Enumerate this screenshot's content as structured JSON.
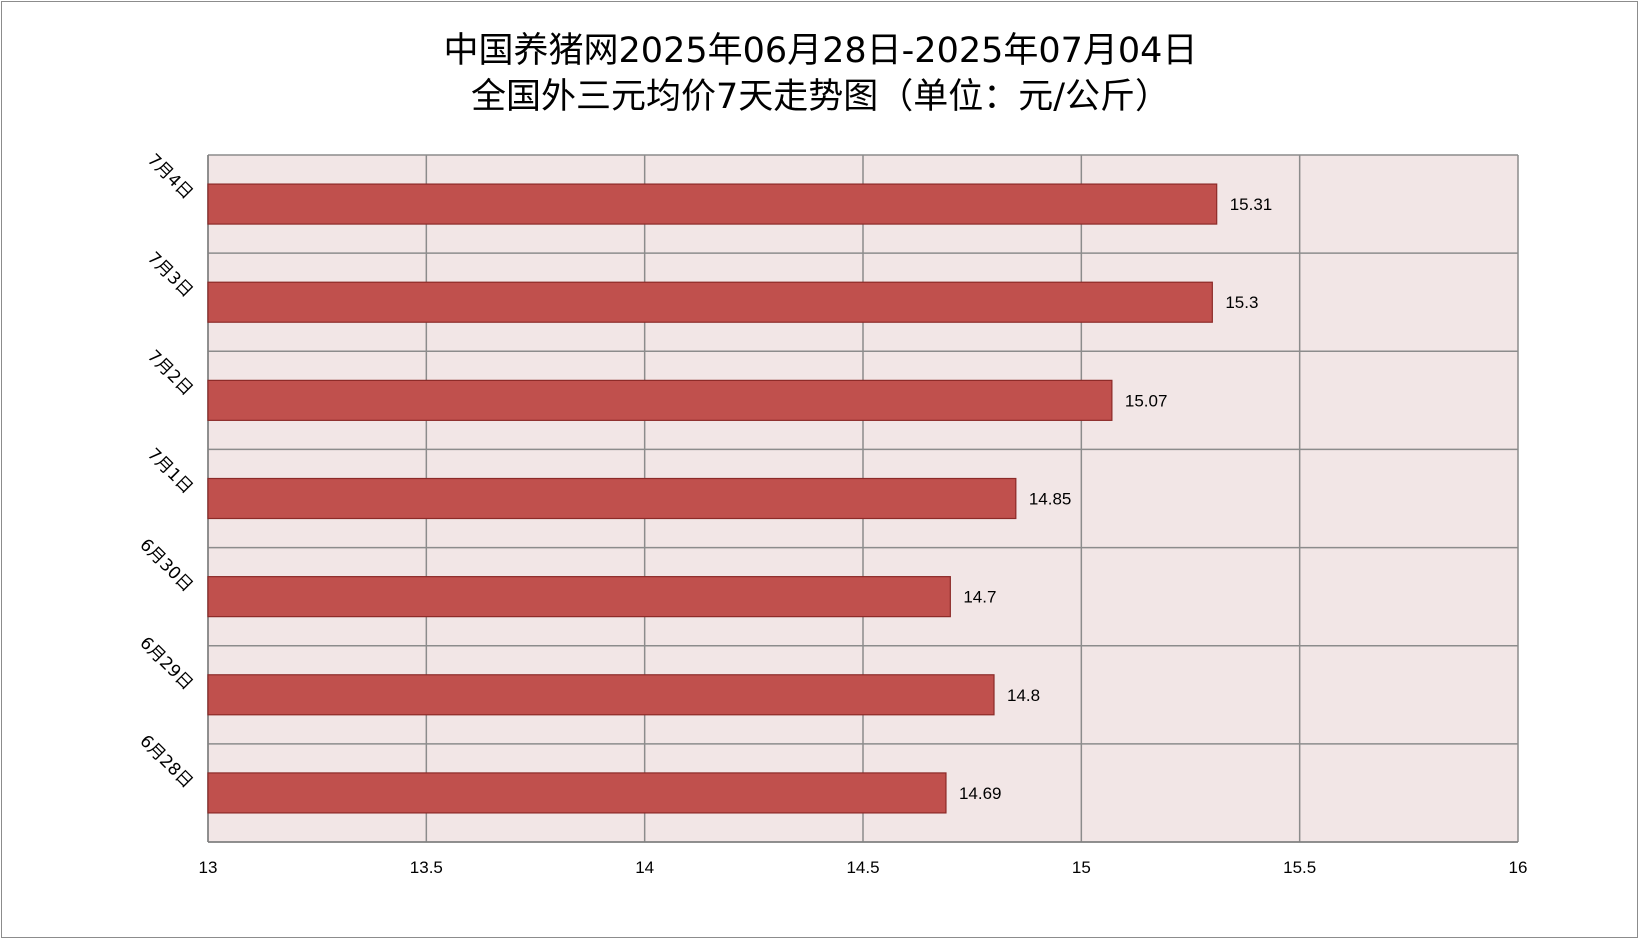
{
  "chart_data": {
    "type": "bar",
    "orientation": "horizontal",
    "title_lines": [
      "中国养猪网2025年06月28日-2025年07月04日",
      "全国外三元均价7天走势图（单位：元/公斤）"
    ],
    "categories": [
      "6月28日",
      "6月29日",
      "6月30日",
      "7月1日",
      "7月2日",
      "7月3日",
      "7月4日"
    ],
    "values": [
      14.69,
      14.8,
      14.7,
      14.85,
      15.07,
      15.3,
      15.31
    ],
    "value_labels": [
      "14.69",
      "14.8",
      "14.7",
      "14.85",
      "15.07",
      "15.3",
      "15.31"
    ],
    "xlim": [
      13,
      16
    ],
    "x_ticks": [
      "13",
      "13.5",
      "14",
      "14.5",
      "15",
      "15.5",
      "16"
    ],
    "xlabel": "",
    "ylabel": "",
    "grid": true,
    "legend": "none",
    "bar_color": "#c0504d",
    "bar_border_color": "#8c2a28",
    "plot_background": "#f2e6e6",
    "grid_color": "#8c8c8c"
  }
}
